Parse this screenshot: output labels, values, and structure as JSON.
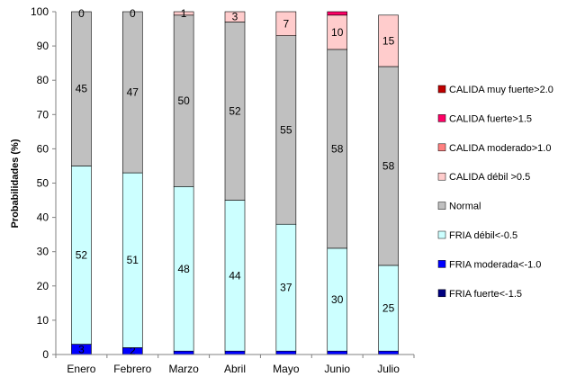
{
  "chart_data": {
    "type": "bar",
    "stacked": true,
    "ylabel": "Probabilidades (%)",
    "ylim": [
      0,
      100
    ],
    "yticks": [
      0,
      10,
      20,
      30,
      40,
      50,
      60,
      70,
      80,
      90,
      100
    ],
    "grid": false,
    "legend_position": "right",
    "categories": [
      "Enero",
      "Febrero",
      "Marzo",
      "Abril",
      "Mayo",
      "Junio",
      "Julio"
    ],
    "series": [
      {
        "name": "FRIA fuerte<-1.5",
        "color": "#000080",
        "values": [
          0,
          0,
          0,
          0,
          0,
          0,
          0
        ],
        "labels": [
          "",
          "",
          "",
          "",
          "",
          "",
          ""
        ]
      },
      {
        "name": "FRIA moderada<-1.0",
        "color": "#0000ff",
        "values": [
          3,
          2,
          1,
          1,
          1,
          1,
          1
        ],
        "labels": [
          "3",
          "2",
          "",
          "",
          "",
          "",
          ""
        ]
      },
      {
        "name": "FRIA débil<-0.5",
        "color": "#ccffff",
        "values": [
          52,
          51,
          48,
          44,
          37,
          30,
          25
        ],
        "labels": [
          "52",
          "51",
          "48",
          "44",
          "37",
          "30",
          "25"
        ]
      },
      {
        "name": "Normal",
        "color": "#c0c0c0",
        "values": [
          45,
          47,
          50,
          52,
          55,
          58,
          58
        ],
        "labels": [
          "45",
          "47",
          "50",
          "52",
          "55",
          "58",
          "58"
        ]
      },
      {
        "name": "CALIDA débil >0.5",
        "color": "#ffcccc",
        "values": [
          0,
          0,
          1,
          3,
          7,
          10,
          15
        ],
        "labels": [
          "0",
          "0",
          "1",
          "3",
          "7",
          "10",
          "15"
        ]
      },
      {
        "name": "CALIDA moderado>1.0",
        "color": "#ff8080",
        "values": [
          0,
          0,
          0,
          0,
          0,
          0,
          0
        ],
        "labels": [
          "",
          "",
          "",
          "",
          "",
          "",
          ""
        ]
      },
      {
        "name": "CALIDA fuerte>1.5",
        "color": "#ff0066",
        "values": [
          0,
          0,
          0,
          0,
          0,
          1,
          0
        ],
        "labels": [
          "",
          "",
          "",
          "",
          "",
          "",
          ""
        ]
      },
      {
        "name": "CALIDA muy fuerte>2.0",
        "color": "#c00000",
        "values": [
          0,
          0,
          0,
          0,
          0,
          0,
          0
        ],
        "labels": [
          "",
          "",
          "",
          "",
          "",
          "",
          ""
        ]
      }
    ]
  }
}
